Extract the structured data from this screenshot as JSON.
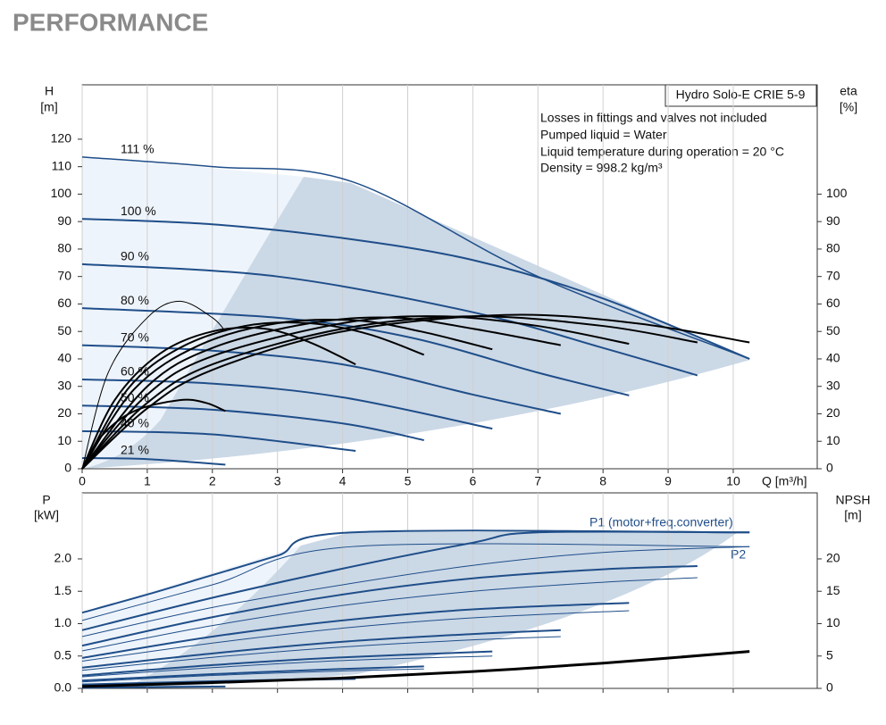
{
  "header": {
    "title": "PERFORMANCE"
  },
  "chart_data": [
    {
      "type": "line",
      "ylabel": [
        "H",
        "[m]"
      ],
      "y2label": [
        "eta",
        "[%]"
      ],
      "xlabel": "Q [m³/h]",
      "legend_title": "Hydro Solo-E CRIE 5-9",
      "notes": [
        "Losses in fittings and valves not included",
        "Pumped liquid = Water",
        "Liquid temperature during operation = 20 °C",
        "Density = 998.2 kg/m³"
      ],
      "xlim": [
        0,
        11.29
      ],
      "xticks": [
        0,
        1,
        2,
        3,
        4,
        5,
        6,
        7,
        8,
        9,
        10
      ],
      "ylim": [
        0,
        139.8
      ],
      "yticks": [
        0,
        10,
        20,
        30,
        40,
        50,
        60,
        70,
        80,
        90,
        100,
        110,
        120
      ],
      "y2lim": [
        0,
        139.8
      ],
      "y2ticks": [
        0,
        10,
        20,
        30,
        40,
        50,
        60,
        70,
        80,
        90,
        100
      ],
      "grid": true,
      "series": [
        {
          "name": "111 %",
          "color": "#1f4e89",
          "line_width": 1.5,
          "x": [
            0,
            2,
            4.15,
            7,
            10.25
          ],
          "values": [
            113.5,
            110,
            104.5,
            70,
            40
          ]
        },
        {
          "name": "100 %",
          "color": "#1f4e89",
          "line_width": 2,
          "x": [
            0,
            2,
            4,
            6,
            8,
            10.25
          ],
          "values": [
            91,
            89,
            84,
            76,
            62,
            40
          ]
        },
        {
          "name": "90 %",
          "color": "#1f4e89",
          "line_width": 2,
          "x": [
            0,
            3,
            6,
            8,
            9.45
          ],
          "values": [
            74.5,
            70,
            57,
            44,
            34
          ]
        },
        {
          "name": "80 %",
          "color": "#1f4e89",
          "line_width": 2,
          "x": [
            0,
            3,
            5,
            7,
            8.4
          ],
          "values": [
            58.5,
            55,
            48,
            35,
            26.7
          ]
        },
        {
          "name": "70 %",
          "color": "#1f4e89",
          "line_width": 2,
          "x": [
            0,
            2,
            4,
            6,
            7.35
          ],
          "values": [
            45,
            43,
            38,
            27,
            20
          ]
        },
        {
          "name": "60 %",
          "color": "#1f4e89",
          "line_width": 2,
          "x": [
            0,
            2,
            4,
            6.3
          ],
          "values": [
            32.5,
            31,
            26,
            14.6
          ]
        },
        {
          "name": "50 %",
          "color": "#1f4e89",
          "line_width": 2,
          "x": [
            0,
            2,
            4,
            5.25
          ],
          "values": [
            23,
            21.5,
            16.5,
            10.4
          ]
        },
        {
          "name": "40 %",
          "color": "#1f4e89",
          "line_width": 2,
          "x": [
            0,
            2,
            4.2
          ],
          "values": [
            13.7,
            12.5,
            6.5
          ]
        },
        {
          "name": "21 %",
          "color": "#1f4e89",
          "line_width": 2,
          "x": [
            0,
            1,
            2.2
          ],
          "values": [
            3.9,
            3.5,
            1.5
          ]
        },
        {
          "axis": "y2",
          "color": "#000000",
          "line_width": 2,
          "x": [
            0,
            1,
            2,
            4,
            6.5,
            8.5,
            10.25
          ],
          "values": [
            0,
            22,
            36,
            50,
            56,
            53,
            46
          ]
        },
        {
          "axis": "y2",
          "color": "#000000",
          "line_width": 2,
          "x": [
            0,
            1,
            2,
            4,
            6,
            8,
            9.45
          ],
          "values": [
            0,
            24,
            38,
            51,
            55.5,
            52,
            46
          ]
        },
        {
          "axis": "y2",
          "color": "#000000",
          "line_width": 2,
          "x": [
            0,
            1,
            2,
            4,
            5.5,
            7,
            8.4
          ],
          "values": [
            0,
            27,
            41,
            53,
            55.5,
            52,
            45.5
          ]
        },
        {
          "axis": "y2",
          "color": "#000000",
          "line_width": 2,
          "x": [
            0,
            1,
            2,
            3.5,
            4.8,
            6,
            7.35
          ],
          "values": [
            0,
            30,
            44,
            53,
            55,
            51,
            45
          ]
        },
        {
          "axis": "y2",
          "color": "#000000",
          "line_width": 2,
          "x": [
            0,
            0.8,
            1.8,
            3,
            4.2,
            5.2,
            6.3
          ],
          "values": [
            0,
            29,
            45,
            53,
            54,
            50,
            43.5
          ]
        },
        {
          "axis": "y2",
          "color": "#000000",
          "line_width": 2,
          "x": [
            0,
            0.7,
            1.5,
            2.5,
            3.5,
            4.4,
            5.25
          ],
          "values": [
            0,
            29,
            44,
            52,
            53,
            49,
            41.5
          ]
        },
        {
          "axis": "y2",
          "color": "#000000",
          "line_width": 2,
          "x": [
            0,
            0.5,
            1.2,
            2,
            2.8,
            3.5,
            4.2
          ],
          "values": [
            0,
            25,
            42,
            50,
            51,
            46,
            38
          ]
        },
        {
          "axis": "y2",
          "color": "#000000",
          "line_width": 2,
          "x": [
            0,
            0.3,
            0.8,
            1.5,
            1.9,
            2.2
          ],
          "values": [
            0,
            12,
            21,
            25,
            24,
            21
          ]
        },
        {
          "axis": "y2",
          "color": "#000000",
          "line_width": 1,
          "x": [
            0,
            0.4,
            1,
            1.5,
            2,
            2.2
          ],
          "values": [
            0,
            35,
            55,
            61,
            55,
            50
          ]
        }
      ]
    },
    {
      "type": "line",
      "ylabel": [
        "P",
        "[kW]"
      ],
      "y2label": [
        "NPSH",
        "[m]"
      ],
      "annotations": [
        "P1 (motor+freq.converter)",
        "P2"
      ],
      "xlim": [
        0,
        11.29
      ],
      "xticks": [
        0,
        1,
        2,
        3,
        4,
        5,
        6,
        7,
        8,
        9,
        10
      ],
      "ylim": [
        0,
        3.02
      ],
      "yticks": [
        {
          "value": 0,
          "label": "0.0"
        },
        0.5,
        {
          "value": 1,
          "label": "1.0"
        },
        1.5,
        {
          "value": 2,
          "label": "2.0"
        }
      ],
      "y2lim": [
        0,
        30.2
      ],
      "y2ticks": [
        0,
        5,
        10,
        15,
        20
      ],
      "grid": true,
      "series": [
        {
          "color": "#1f4e89",
          "line_width": 2,
          "x": [
            0,
            1,
            2,
            3,
            4.15,
            10.25
          ],
          "values": [
            1.17,
            1.45,
            1.75,
            2.05,
            2.41,
            2.41
          ]
        },
        {
          "color": "#1f4e89",
          "line_width": 1,
          "x": [
            0,
            2,
            4.15,
            10.25
          ],
          "values": [
            1.05,
            1.6,
            2.19,
            2.19
          ]
        },
        {
          "color": "#1f4e89",
          "line_width": 2,
          "x": [
            0,
            2,
            4,
            6,
            7,
            10.25
          ],
          "values": [
            0.9,
            1.4,
            1.85,
            2.25,
            2.41,
            2.41
          ]
        },
        {
          "color": "#1f4e89",
          "line_width": 1,
          "x": [
            0,
            2,
            4,
            6,
            8,
            10.25
          ],
          "values": [
            0.8,
            1.25,
            1.6,
            1.9,
            2.1,
            2.19
          ]
        },
        {
          "color": "#1f4e89",
          "line_width": 2,
          "x": [
            0,
            2,
            4,
            6,
            8,
            9.45
          ],
          "values": [
            0.66,
            1.1,
            1.45,
            1.7,
            1.84,
            1.89
          ]
        },
        {
          "color": "#1f4e89",
          "line_width": 1,
          "x": [
            0,
            2,
            4,
            6,
            8,
            9.45
          ],
          "values": [
            0.58,
            0.97,
            1.28,
            1.5,
            1.64,
            1.71
          ]
        },
        {
          "color": "#1f4e89",
          "line_width": 2,
          "x": [
            0,
            2,
            4,
            6,
            8.4
          ],
          "values": [
            0.47,
            0.8,
            1.05,
            1.22,
            1.32
          ]
        },
        {
          "color": "#1f4e89",
          "line_width": 1,
          "x": [
            0,
            2,
            4,
            6,
            8.4
          ],
          "values": [
            0.42,
            0.7,
            0.93,
            1.09,
            1.2
          ]
        },
        {
          "color": "#1f4e89",
          "line_width": 2,
          "x": [
            0,
            2,
            4,
            6,
            7.35
          ],
          "values": [
            0.32,
            0.54,
            0.72,
            0.84,
            0.9
          ]
        },
        {
          "color": "#1f4e89",
          "line_width": 1,
          "x": [
            0,
            2,
            4,
            6,
            7.35
          ],
          "values": [
            0.28,
            0.48,
            0.64,
            0.75,
            0.8
          ]
        },
        {
          "color": "#1f4e89",
          "line_width": 2,
          "x": [
            0,
            2,
            4,
            6.3
          ],
          "values": [
            0.2,
            0.36,
            0.48,
            0.57
          ]
        },
        {
          "color": "#1f4e89",
          "line_width": 1,
          "x": [
            0,
            2,
            4,
            6.3
          ],
          "values": [
            0.18,
            0.32,
            0.43,
            0.5
          ]
        },
        {
          "color": "#1f4e89",
          "line_width": 2,
          "x": [
            0,
            2,
            4,
            5.25
          ],
          "values": [
            0.12,
            0.22,
            0.3,
            0.34
          ]
        },
        {
          "color": "#1f4e89",
          "line_width": 1,
          "x": [
            0,
            2,
            4,
            5.25
          ],
          "values": [
            0.1,
            0.2,
            0.27,
            0.3
          ]
        },
        {
          "color": "#1f4e89",
          "line_width": 2,
          "x": [
            0,
            2,
            4.2
          ],
          "values": [
            0.06,
            0.11,
            0.16
          ]
        },
        {
          "color": "#1f4e89",
          "line_width": 1,
          "x": [
            0,
            2,
            4.2
          ],
          "values": [
            0.05,
            0.1,
            0.14
          ]
        },
        {
          "color": "#1f4e89",
          "line_width": 2,
          "x": [
            0,
            1,
            2.2
          ],
          "values": [
            0.01,
            0.02,
            0.03
          ]
        },
        {
          "axis": "y2",
          "color": "#000000",
          "line_width": 3,
          "x": [
            0,
            2,
            4,
            6,
            8,
            10.25
          ],
          "values": [
            0.3,
            0.9,
            1.6,
            2.6,
            3.9,
            5.7
          ]
        }
      ]
    }
  ]
}
